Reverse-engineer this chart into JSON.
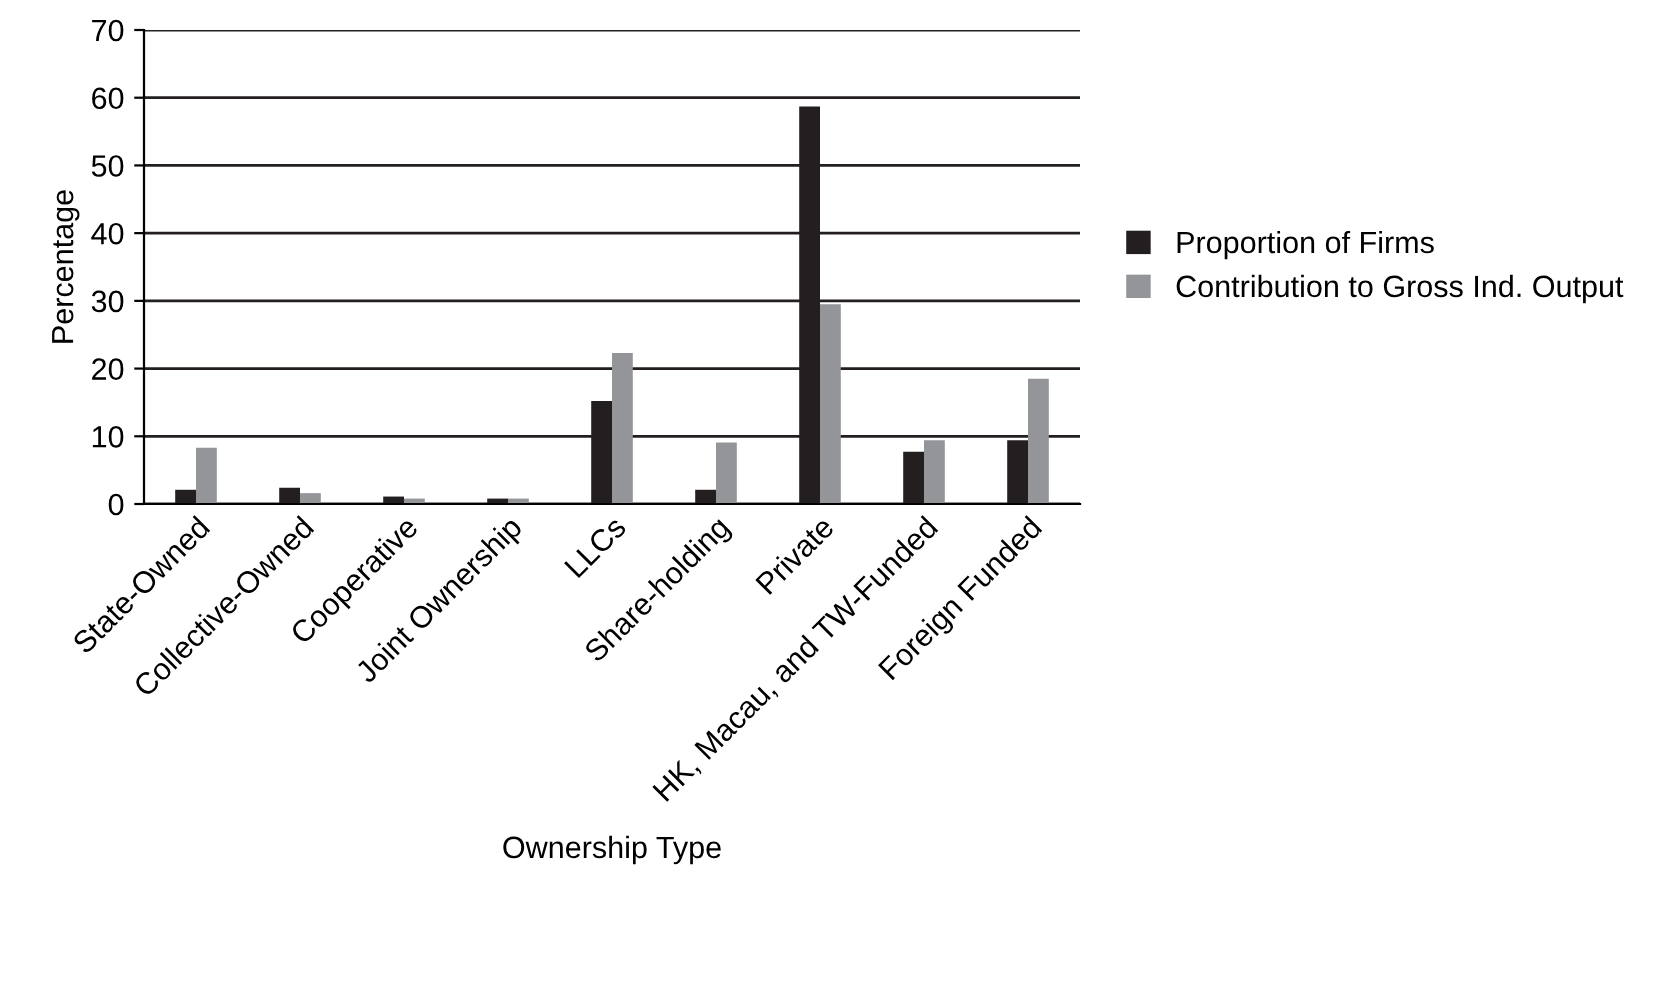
{
  "chart_data": {
    "type": "bar",
    "xlabel": "Ownership Type",
    "ylabel": "Percentage",
    "categories": [
      "State-Owned",
      "Collective-Owned",
      "Cooperative",
      "Joint Ownership",
      "LLCs",
      "Share-holding",
      "Private",
      "HK, Macau, and TW-Funded",
      "Foreign Funded"
    ],
    "series": [
      {
        "name": "Proportion of Firms",
        "color": "#231f20",
        "values": [
          2.1,
          2.4,
          1.1,
          0.8,
          15.2,
          2.1,
          58.7,
          7.7,
          9.4
        ]
      },
      {
        "name": "Contribution to Gross Ind. Output",
        "color": "#939598",
        "values": [
          8.3,
          1.6,
          0.8,
          0.8,
          22.3,
          9.1,
          29.5,
          9.4,
          18.5
        ]
      }
    ],
    "ylim": [
      0,
      70
    ],
    "yticks": [
      0,
      10,
      20,
      30,
      40,
      50,
      60,
      70
    ],
    "grid": "y",
    "legend": "right"
  }
}
